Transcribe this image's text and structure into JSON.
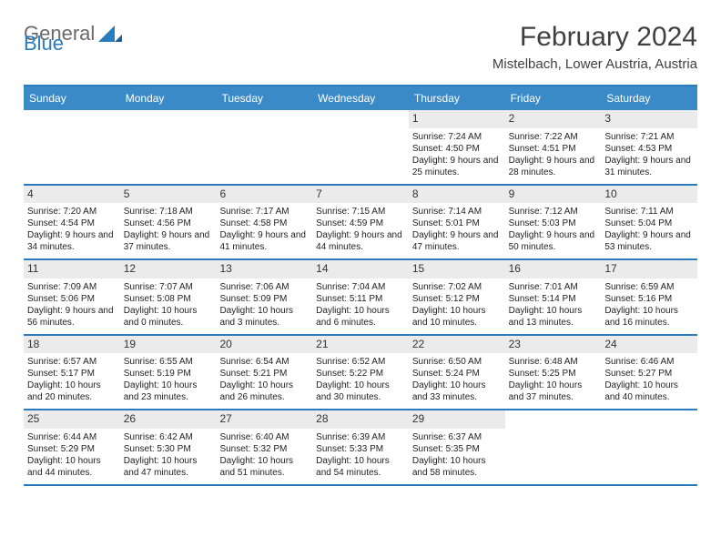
{
  "logo": {
    "word1": "General",
    "word2": "Blue"
  },
  "title": "February 2024",
  "subtitle": "Mistelbach, Lower Austria, Austria",
  "colors": {
    "accent": "#3a8ac8",
    "accent_line": "#2b7bbf",
    "logo_gray": "#6a6a6a",
    "day_header_bg": "#ebebeb",
    "text": "#222222",
    "background": "#ffffff"
  },
  "dow": [
    "Sunday",
    "Monday",
    "Tuesday",
    "Wednesday",
    "Thursday",
    "Friday",
    "Saturday"
  ],
  "weeks": [
    [
      null,
      null,
      null,
      null,
      {
        "n": "1",
        "sr": "7:24 AM",
        "ss": "4:50 PM",
        "dl": "9 hours and 25 minutes."
      },
      {
        "n": "2",
        "sr": "7:22 AM",
        "ss": "4:51 PM",
        "dl": "9 hours and 28 minutes."
      },
      {
        "n": "3",
        "sr": "7:21 AM",
        "ss": "4:53 PM",
        "dl": "9 hours and 31 minutes."
      }
    ],
    [
      {
        "n": "4",
        "sr": "7:20 AM",
        "ss": "4:54 PM",
        "dl": "9 hours and 34 minutes."
      },
      {
        "n": "5",
        "sr": "7:18 AM",
        "ss": "4:56 PM",
        "dl": "9 hours and 37 minutes."
      },
      {
        "n": "6",
        "sr": "7:17 AM",
        "ss": "4:58 PM",
        "dl": "9 hours and 41 minutes."
      },
      {
        "n": "7",
        "sr": "7:15 AM",
        "ss": "4:59 PM",
        "dl": "9 hours and 44 minutes."
      },
      {
        "n": "8",
        "sr": "7:14 AM",
        "ss": "5:01 PM",
        "dl": "9 hours and 47 minutes."
      },
      {
        "n": "9",
        "sr": "7:12 AM",
        "ss": "5:03 PM",
        "dl": "9 hours and 50 minutes."
      },
      {
        "n": "10",
        "sr": "7:11 AM",
        "ss": "5:04 PM",
        "dl": "9 hours and 53 minutes."
      }
    ],
    [
      {
        "n": "11",
        "sr": "7:09 AM",
        "ss": "5:06 PM",
        "dl": "9 hours and 56 minutes."
      },
      {
        "n": "12",
        "sr": "7:07 AM",
        "ss": "5:08 PM",
        "dl": "10 hours and 0 minutes."
      },
      {
        "n": "13",
        "sr": "7:06 AM",
        "ss": "5:09 PM",
        "dl": "10 hours and 3 minutes."
      },
      {
        "n": "14",
        "sr": "7:04 AM",
        "ss": "5:11 PM",
        "dl": "10 hours and 6 minutes."
      },
      {
        "n": "15",
        "sr": "7:02 AM",
        "ss": "5:12 PM",
        "dl": "10 hours and 10 minutes."
      },
      {
        "n": "16",
        "sr": "7:01 AM",
        "ss": "5:14 PM",
        "dl": "10 hours and 13 minutes."
      },
      {
        "n": "17",
        "sr": "6:59 AM",
        "ss": "5:16 PM",
        "dl": "10 hours and 16 minutes."
      }
    ],
    [
      {
        "n": "18",
        "sr": "6:57 AM",
        "ss": "5:17 PM",
        "dl": "10 hours and 20 minutes."
      },
      {
        "n": "19",
        "sr": "6:55 AM",
        "ss": "5:19 PM",
        "dl": "10 hours and 23 minutes."
      },
      {
        "n": "20",
        "sr": "6:54 AM",
        "ss": "5:21 PM",
        "dl": "10 hours and 26 minutes."
      },
      {
        "n": "21",
        "sr": "6:52 AM",
        "ss": "5:22 PM",
        "dl": "10 hours and 30 minutes."
      },
      {
        "n": "22",
        "sr": "6:50 AM",
        "ss": "5:24 PM",
        "dl": "10 hours and 33 minutes."
      },
      {
        "n": "23",
        "sr": "6:48 AM",
        "ss": "5:25 PM",
        "dl": "10 hours and 37 minutes."
      },
      {
        "n": "24",
        "sr": "6:46 AM",
        "ss": "5:27 PM",
        "dl": "10 hours and 40 minutes."
      }
    ],
    [
      {
        "n": "25",
        "sr": "6:44 AM",
        "ss": "5:29 PM",
        "dl": "10 hours and 44 minutes."
      },
      {
        "n": "26",
        "sr": "6:42 AM",
        "ss": "5:30 PM",
        "dl": "10 hours and 47 minutes."
      },
      {
        "n": "27",
        "sr": "6:40 AM",
        "ss": "5:32 PM",
        "dl": "10 hours and 51 minutes."
      },
      {
        "n": "28",
        "sr": "6:39 AM",
        "ss": "5:33 PM",
        "dl": "10 hours and 54 minutes."
      },
      {
        "n": "29",
        "sr": "6:37 AM",
        "ss": "5:35 PM",
        "dl": "10 hours and 58 minutes."
      },
      null,
      null
    ]
  ],
  "labels": {
    "sunrise": "Sunrise:",
    "sunset": "Sunset:",
    "daylight": "Daylight:"
  }
}
